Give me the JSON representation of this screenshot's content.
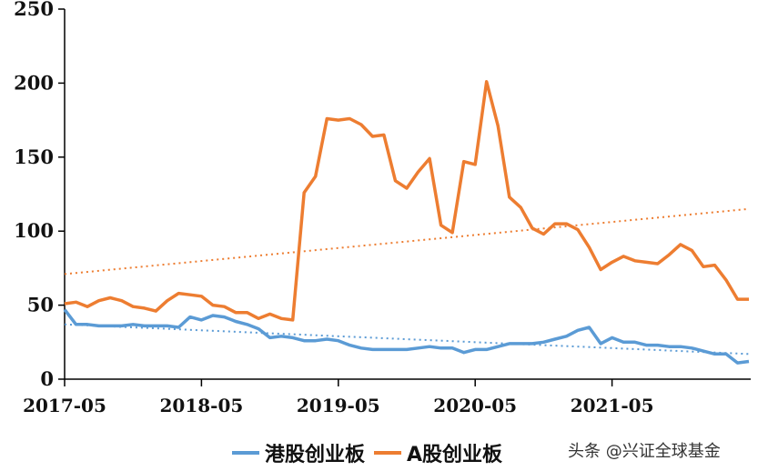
{
  "chart_data": {
    "type": "line",
    "title": "",
    "xlabel": "",
    "ylabel": "",
    "ylim": [
      0,
      250
    ],
    "yticks": [
      0,
      50,
      100,
      150,
      200,
      250
    ],
    "xtick_labels": [
      "2017-05",
      "2018-05",
      "2019-05",
      "2020-05",
      "2021-05"
    ],
    "x_start": "2017-05",
    "x_frequency": "monthly",
    "grid": false,
    "legend_position": "bottom",
    "series": [
      {
        "name": "港股创业板",
        "color": "#5b9bd5",
        "values": [
          47,
          37,
          37,
          36,
          36,
          36,
          37,
          36,
          36,
          36,
          35,
          42,
          40,
          43,
          42,
          39,
          37,
          34,
          28,
          29,
          28,
          26,
          26,
          27,
          26,
          23,
          21,
          20,
          20,
          20,
          20,
          21,
          22,
          21,
          21,
          18,
          20,
          20,
          22,
          24,
          24,
          24,
          25,
          27,
          29,
          33,
          35,
          24,
          28,
          25,
          25,
          23,
          23,
          22,
          22,
          21,
          19,
          17,
          17,
          11,
          12
        ]
      },
      {
        "name": "A股创业板",
        "color": "#ed7d31",
        "values": [
          51,
          52,
          49,
          53,
          55,
          53,
          49,
          48,
          46,
          53,
          58,
          57,
          56,
          50,
          49,
          45,
          45,
          41,
          44,
          41,
          40,
          126,
          137,
          176,
          175,
          176,
          172,
          164,
          165,
          134,
          129,
          140,
          149,
          104,
          99,
          147,
          145,
          201,
          171,
          123,
          116,
          102,
          98,
          105,
          105,
          101,
          89,
          74,
          79,
          83,
          80,
          79,
          78,
          84,
          91,
          87,
          76,
          77,
          67,
          54,
          54
        ]
      }
    ],
    "trendlines": [
      {
        "series": "港股创业板",
        "style": "dotted",
        "color": "#5b9bd5",
        "start": 37,
        "end": 17
      },
      {
        "series": "A股创业板",
        "style": "dotted",
        "color": "#ed7d31",
        "start": 71,
        "end": 115
      }
    ]
  },
  "legend": {
    "items": [
      {
        "label": "港股创业板",
        "color": "#5b9bd5"
      },
      {
        "label": "A股创业板",
        "color": "#ed7d31"
      }
    ]
  },
  "watermark": "头条 @兴证全球基金"
}
